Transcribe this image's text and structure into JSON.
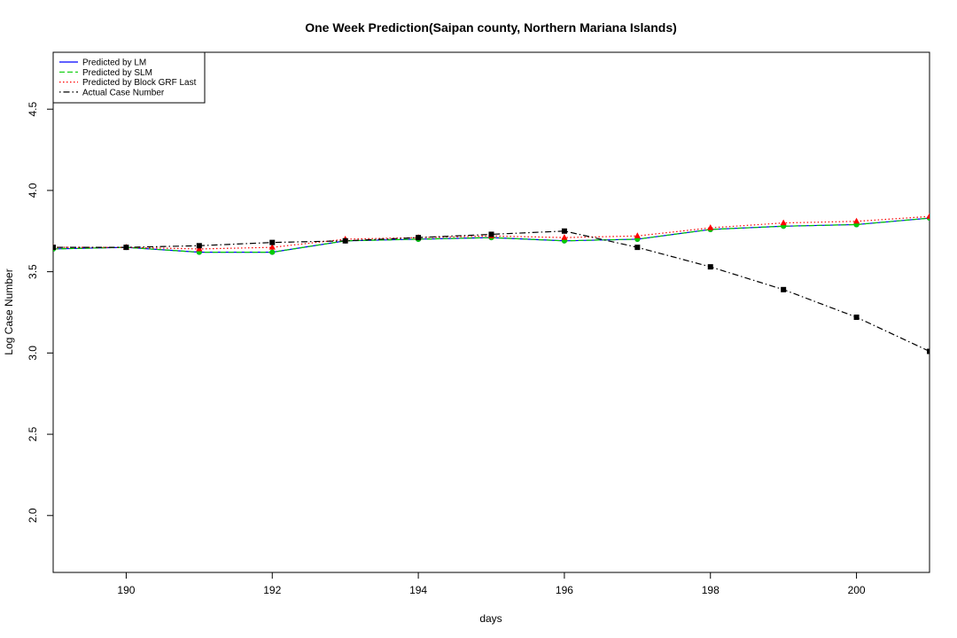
{
  "chart_data": {
    "type": "line",
    "title": "One Week Prediction(Saipan county, Northern Mariana Islands)",
    "xlabel": "days",
    "ylabel": "Log Case Number",
    "xlim": [
      189,
      201
    ],
    "ylim": [
      1.65,
      4.85
    ],
    "xticks": [
      190,
      192,
      194,
      196,
      198,
      200
    ],
    "yticks": [
      2.0,
      2.5,
      3.0,
      3.5,
      4.0,
      4.5
    ],
    "xtick_labels": [
      "190",
      "192",
      "194",
      "196",
      "198",
      "200"
    ],
    "ytick_labels": [
      "2.0",
      "2.5",
      "3.0",
      "3.5",
      "4.0",
      "4.5"
    ],
    "grid": false,
    "legend_position": "top-left",
    "x": [
      189,
      190,
      191,
      192,
      193,
      194,
      195,
      196,
      197,
      198,
      199,
      200,
      201
    ],
    "series": [
      {
        "name": "Predicted by LM",
        "color": "#0000ff",
        "line_style": "solid",
        "marker": "circle",
        "values": [
          3.64,
          3.65,
          3.62,
          3.62,
          3.69,
          3.7,
          3.71,
          3.69,
          3.7,
          3.76,
          3.78,
          3.79,
          3.83
        ]
      },
      {
        "name": "Predicted by SLM",
        "color": "#00cc00",
        "line_style": "dashed",
        "marker": "circle",
        "values": [
          3.64,
          3.65,
          3.62,
          3.62,
          3.69,
          3.7,
          3.71,
          3.69,
          3.7,
          3.76,
          3.78,
          3.79,
          3.83
        ]
      },
      {
        "name": "Predicted by Block GRF Last",
        "color": "#ff0000",
        "line_style": "dotted",
        "marker": "triangle",
        "values": [
          3.65,
          3.65,
          3.64,
          3.65,
          3.7,
          3.71,
          3.72,
          3.71,
          3.72,
          3.77,
          3.8,
          3.81,
          3.84
        ]
      },
      {
        "name": "Actual Case Number",
        "color": "#000000",
        "line_style": "dotdash",
        "marker": "square",
        "values": [
          3.65,
          3.65,
          3.66,
          3.68,
          3.69,
          3.71,
          3.73,
          3.75,
          3.65,
          3.53,
          3.39,
          3.22,
          3.01
        ]
      }
    ]
  }
}
